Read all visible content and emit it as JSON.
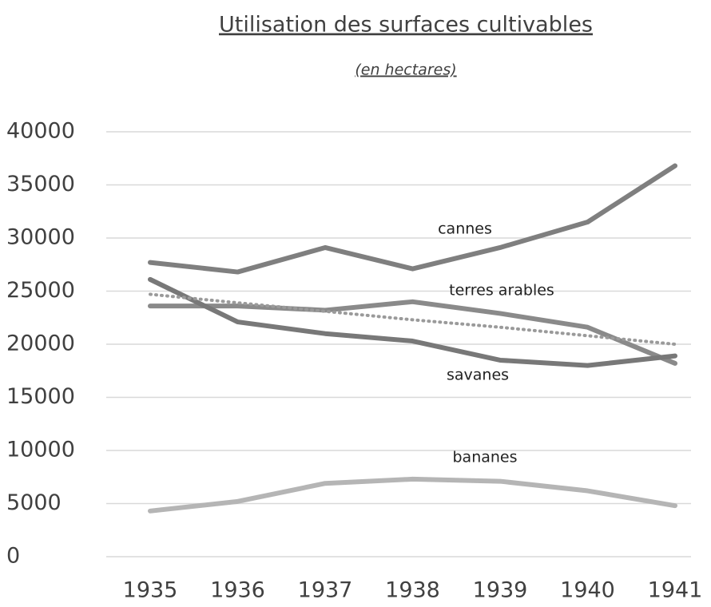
{
  "chart_data": {
    "type": "line",
    "title": "Utilisation des surfaces cultivables",
    "subtitle": "(en hectares)",
    "categories": [
      "1935",
      "1936",
      "1937",
      "1938",
      "1939",
      "1940",
      "1941"
    ],
    "series": [
      {
        "name": "cannes",
        "color": "#7f7f7f",
        "values": [
          27700,
          26800,
          29100,
          27100,
          29100,
          31500,
          36800
        ]
      },
      {
        "name": "terres arables",
        "color": "#8a8a8a",
        "values": [
          23600,
          23600,
          23200,
          24000,
          22900,
          21600,
          18200
        ]
      },
      {
        "name": "savanes",
        "color": "#787878",
        "values": [
          26100,
          22100,
          21000,
          20300,
          18500,
          18000,
          18900
        ]
      },
      {
        "name": "bananes",
        "color": "#b5b5b5",
        "values": [
          4300,
          5200,
          6900,
          7300,
          7100,
          6200,
          4800
        ]
      },
      {
        "color": "#9a9a9a",
        "dashed": true,
        "values": [
          24700,
          23900,
          23100,
          22300,
          21600,
          20800,
          20000
        ]
      }
    ],
    "ylim": [
      0,
      40000
    ],
    "yticks": [
      0,
      5000,
      10000,
      15000,
      20000,
      25000,
      30000,
      35000,
      40000
    ],
    "grid": true
  }
}
